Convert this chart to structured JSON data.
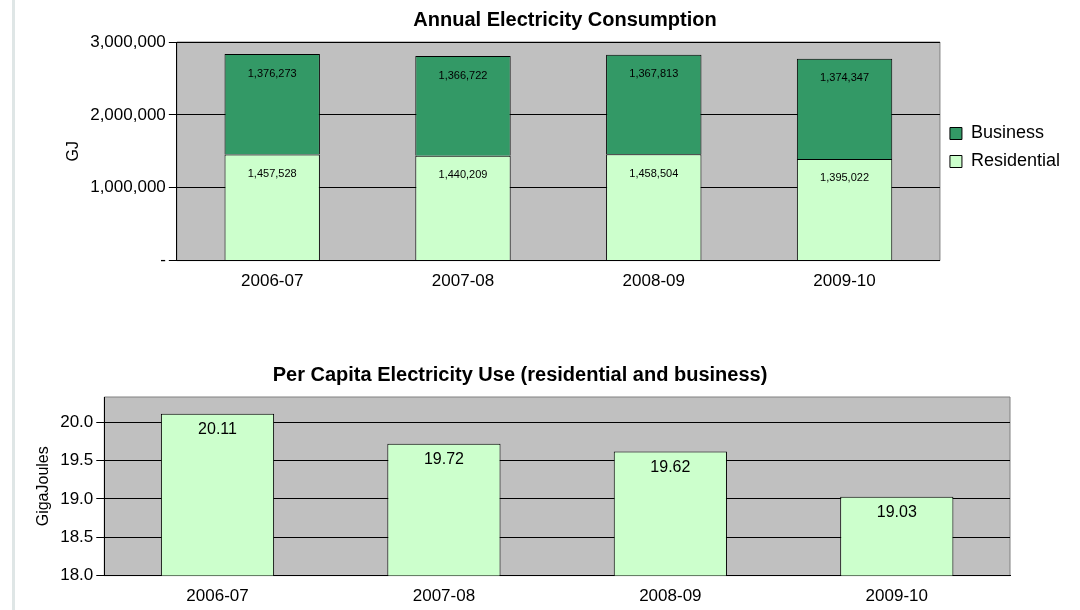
{
  "chart_data": [
    {
      "type": "bar",
      "title": "Annual Electricity Consumption",
      "ylabel": "GJ",
      "categories": [
        "2006-07",
        "2007-08",
        "2008-09",
        "2009-10"
      ],
      "stacked": true,
      "series": [
        {
          "name": "Residential",
          "color": "#ccffcc",
          "values": [
            1457528,
            1440209,
            1458504,
            1395022
          ],
          "value_labels": [
            "1,457,528",
            "1,440,209",
            "1,458,504",
            "1,395,022"
          ]
        },
        {
          "name": "Business",
          "color": "#339966",
          "values": [
            1376273,
            1366722,
            1367813,
            1374347
          ],
          "value_labels": [
            "1,376,273",
            "1,366,722",
            "1,367,813",
            "1,374,347"
          ]
        }
      ],
      "ylim": [
        0,
        3000000
      ],
      "yticks": [
        {
          "value": 0,
          "label": "-"
        },
        {
          "value": 1000000,
          "label": "1,000,000"
        },
        {
          "value": 2000000,
          "label": "2,000,000"
        },
        {
          "value": 3000000,
          "label": "3,000,000"
        }
      ],
      "grid": "y",
      "legend": "right"
    },
    {
      "type": "bar",
      "title": "Per Capita Electricity Use (residential and business)",
      "ylabel": "GigaJoules",
      "categories": [
        "2006-07",
        "2007-08",
        "2008-09",
        "2009-10"
      ],
      "series": [
        {
          "color": "#ccffcc",
          "values": [
            20.11,
            19.72,
            19.62,
            19.03
          ]
        }
      ],
      "ylim": [
        18,
        20.33
      ],
      "yticks": [
        {
          "value": 18,
          "label": "18.0"
        },
        {
          "value": 18.5,
          "label": "18.5"
        },
        {
          "value": 19,
          "label": "19.0"
        },
        {
          "value": 19.5,
          "label": "19.5"
        },
        {
          "value": 20,
          "label": "20.0"
        }
      ],
      "grid": "y",
      "data_labels": true
    }
  ]
}
